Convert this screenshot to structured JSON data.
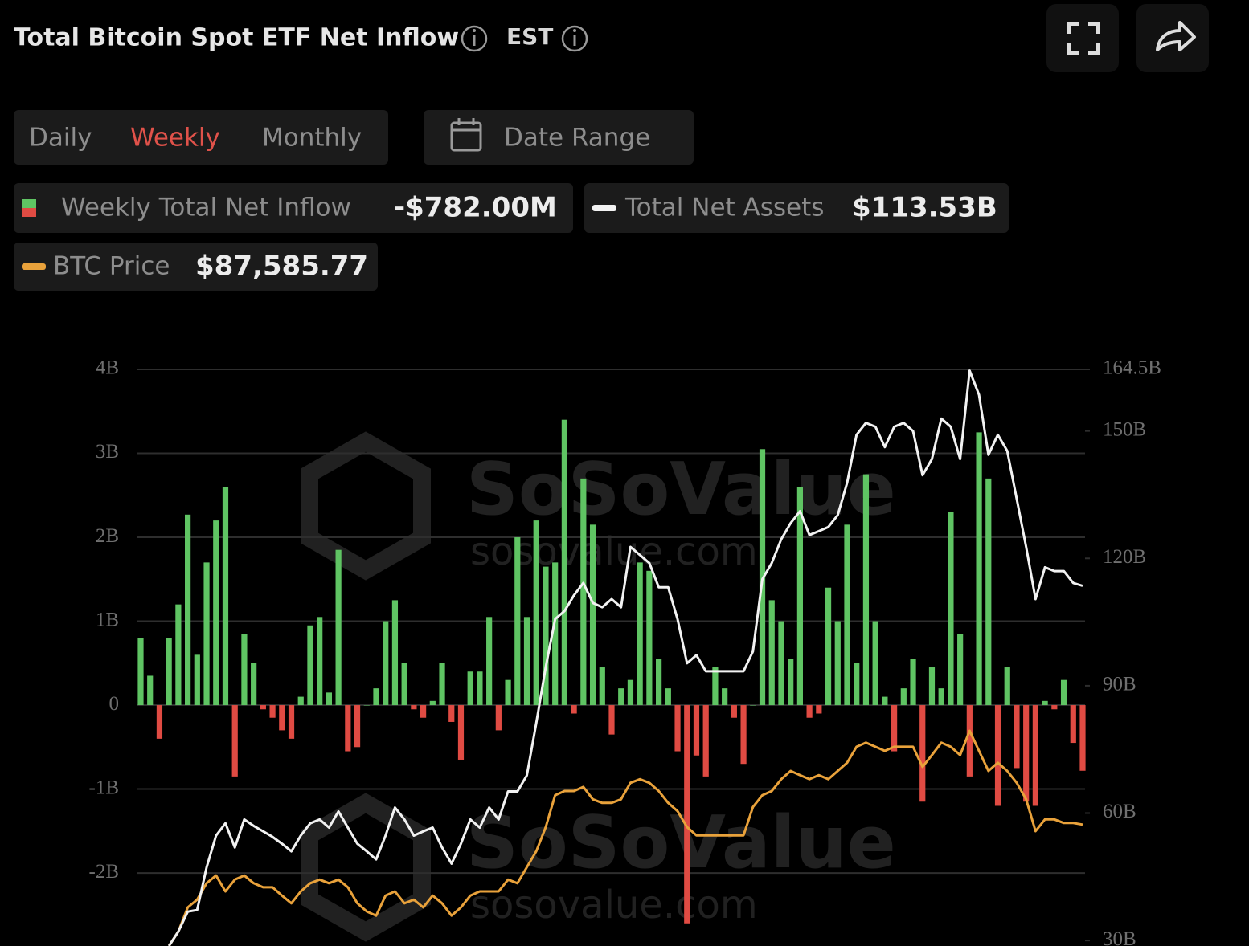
{
  "header": {
    "title": "Total Bitcoin Spot ETF Net Inflow",
    "timezone": "EST"
  },
  "controls": {
    "tabs": [
      "Daily",
      "Weekly",
      "Monthly"
    ],
    "active_tab": 1,
    "date_range": "Date Range"
  },
  "watermark": {
    "brand": "SoSoValue",
    "site": "sosovalue.com"
  },
  "chart_data": {
    "type": "combo",
    "grid": true,
    "ylim": [
      -2.87,
      4
    ],
    "yticks": [
      {
        "value": 4,
        "label": "4B"
      },
      {
        "value": 3,
        "label": "3B"
      },
      {
        "value": 2,
        "label": "2B"
      },
      {
        "value": 1,
        "label": "1B"
      },
      0,
      {
        "value": -1,
        "label": "-1B"
      },
      {
        "value": -2,
        "label": "-2B"
      }
    ],
    "y2lim": [
      28.7,
      164.5
    ],
    "y2ticks": [
      {
        "value": 164.5,
        "label": "164.5B"
      },
      {
        "value": 150,
        "label": "150B"
      },
      {
        "value": 120,
        "label": "120B"
      },
      {
        "value": 90,
        "label": "90B"
      },
      {
        "value": 60,
        "label": "60B"
      },
      {
        "value": 30,
        "label": "30B"
      }
    ],
    "y3lim": [
      64000,
      176000
    ],
    "series": [
      {
        "name": "Weekly Total Net Inflow",
        "type": "bar",
        "latest": "-$782.00M",
        "color": "#5fc463",
        "negative_color": "#e04b43",
        "values": [
          0.8,
          0.35,
          -0.4,
          0.8,
          1.2,
          2.27,
          0.6,
          1.7,
          2.2,
          2.6,
          -0.85,
          0.85,
          0.5,
          -0.05,
          -0.15,
          -0.3,
          -0.4,
          0.1,
          0.95,
          1.05,
          0.15,
          1.85,
          -0.55,
          -0.5,
          0,
          0.2,
          1.0,
          1.25,
          0.5,
          -0.05,
          -0.15,
          0.05,
          0.5,
          -0.2,
          -0.65,
          0.4,
          0.4,
          1.05,
          -0.3,
          0.3,
          2.0,
          1.05,
          2.2,
          1.65,
          1.7,
          3.4,
          -0.1,
          2.7,
          2.15,
          0.45,
          -0.35,
          0.2,
          0.3,
          1.7,
          1.6,
          0.55,
          0.2,
          -0.55,
          -2.6,
          -0.6,
          -0.85,
          0.45,
          0.2,
          -0.15,
          -0.7,
          0,
          3.05,
          1.25,
          1.0,
          0.55,
          2.6,
          -0.15,
          -0.1,
          1.4,
          1.0,
          2.15,
          0.5,
          2.75,
          1.0,
          0.1,
          -0.55,
          0.2,
          0.55,
          -1.15,
          0.45,
          0.2,
          2.3,
          0.85,
          -0.85,
          3.25,
          2.7,
          -1.2,
          0.45,
          -0.75,
          -1.15,
          -1.2,
          0.05,
          -0.05,
          0.3,
          -0.45,
          -0.782
        ]
      },
      {
        "name": "Total Net Assets",
        "type": "line",
        "axis": "y2",
        "latest": "$113.53B",
        "color": "#f2f2f2",
        "values": [
          null,
          null,
          null,
          28.7,
          32.1,
          36.8,
          37.2,
          47.2,
          54.7,
          57.6,
          51.9,
          58.5,
          57.0,
          55.7,
          54.4,
          52.8,
          51.0,
          54.7,
          57.6,
          58.5,
          56.6,
          60.4,
          56.6,
          52.8,
          51.0,
          49.1,
          54.7,
          61.3,
          58.5,
          54.7,
          55.7,
          56.6,
          51.9,
          48.1,
          52.8,
          58.5,
          56.6,
          61.3,
          58.5,
          65.1,
          65.1,
          68.9,
          81.2,
          94.4,
          105.7,
          107.6,
          111.3,
          114.2,
          109.5,
          108.5,
          110.4,
          108.5,
          122.7,
          120.8,
          118.9,
          113.2,
          113.2,
          105.7,
          95.3,
          97.2,
          93.4,
          93.4,
          93.4,
          93.4,
          93.4,
          98.1,
          115.1,
          118.9,
          124.5,
          128.3,
          131.1,
          125.5,
          126.4,
          127.4,
          130.2,
          137.8,
          149.1,
          151.9,
          151.0,
          146.2,
          151.0,
          151.9,
          150.0,
          139.6,
          143.4,
          152.9,
          151.0,
          143.4,
          164.2,
          158.5,
          144.4,
          149.1,
          145.3,
          134.0,
          122.7,
          110.4,
          117.9,
          117.0,
          117.0,
          114.2,
          113.53
        ]
      },
      {
        "name": "BTC Price",
        "type": "line",
        "axis": "y3",
        "latest": "$87,585.77",
        "color": "#e9a23b",
        "values": [
          null,
          null,
          null,
          64000,
          66800,
          71500,
          73000,
          76200,
          77700,
          74600,
          76900,
          77700,
          76200,
          75400,
          75400,
          73800,
          72300,
          74600,
          76200,
          76900,
          76200,
          76900,
          75400,
          72300,
          70700,
          69900,
          73800,
          74600,
          72300,
          73000,
          71500,
          73800,
          72300,
          69900,
          71500,
          73800,
          74600,
          74600,
          74600,
          76900,
          76200,
          79300,
          82400,
          87100,
          93300,
          94100,
          94100,
          94900,
          92500,
          91800,
          91800,
          92500,
          95700,
          96400,
          95700,
          94100,
          91800,
          90200,
          87100,
          85500,
          85500,
          85500,
          85500,
          85500,
          85500,
          91000,
          93300,
          94100,
          96400,
          98000,
          97200,
          96400,
          97200,
          96400,
          98000,
          99600,
          102700,
          103500,
          102700,
          101900,
          102700,
          102700,
          102700,
          98800,
          101100,
          103500,
          102700,
          101100,
          105800,
          101900,
          98000,
          99600,
          98000,
          95700,
          92500,
          86300,
          88600,
          88600,
          87900,
          87900,
          87585.77
        ]
      }
    ]
  }
}
